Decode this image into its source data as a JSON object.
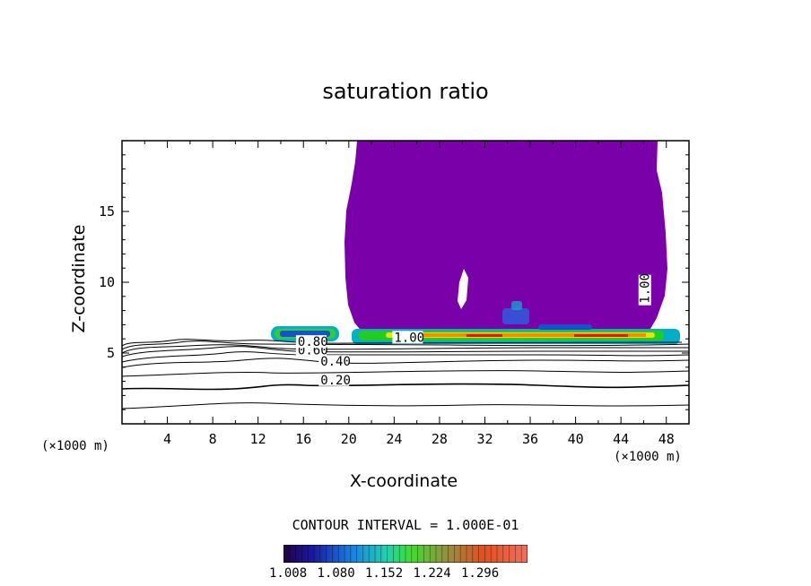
{
  "chart_data": {
    "type": "contour",
    "title": "saturation ratio",
    "xlabel": "X-coordinate",
    "ylabel": "Z-coordinate",
    "x_unit": "(×1000 m)",
    "xlim": [
      0,
      50
    ],
    "ylim": [
      0,
      20
    ],
    "x_ticks": [
      "4",
      "8",
      "12",
      "16",
      "20",
      "24",
      "28",
      "32",
      "36",
      "40",
      "44",
      "48"
    ],
    "y_ticks": [
      "5",
      "10",
      "15"
    ],
    "contour_interval": "CONTOUR INTERVAL = 1.000E-01",
    "contour_labels": [
      {
        "text": "0.20",
        "x": 17.5,
        "z": 2.8
      },
      {
        "text": "0.40",
        "x": 17.5,
        "z": 4.1
      },
      {
        "text": "0.60",
        "x": 15.5,
        "z": 4.9
      },
      {
        "text": "0.80",
        "x": 15.5,
        "z": 5.5
      },
      {
        "text": "1.00",
        "x": 24,
        "z": 5.8
      },
      {
        "text": "1.00",
        "x": 46.5,
        "z": 8.5
      }
    ],
    "colorbar": {
      "ticks": [
        "1.008",
        "1.080",
        "1.152",
        "1.224",
        "1.296"
      ]
    },
    "colors": {
      "supersaturated_fill": "#7a00aa",
      "contour_line": "#000000"
    }
  }
}
